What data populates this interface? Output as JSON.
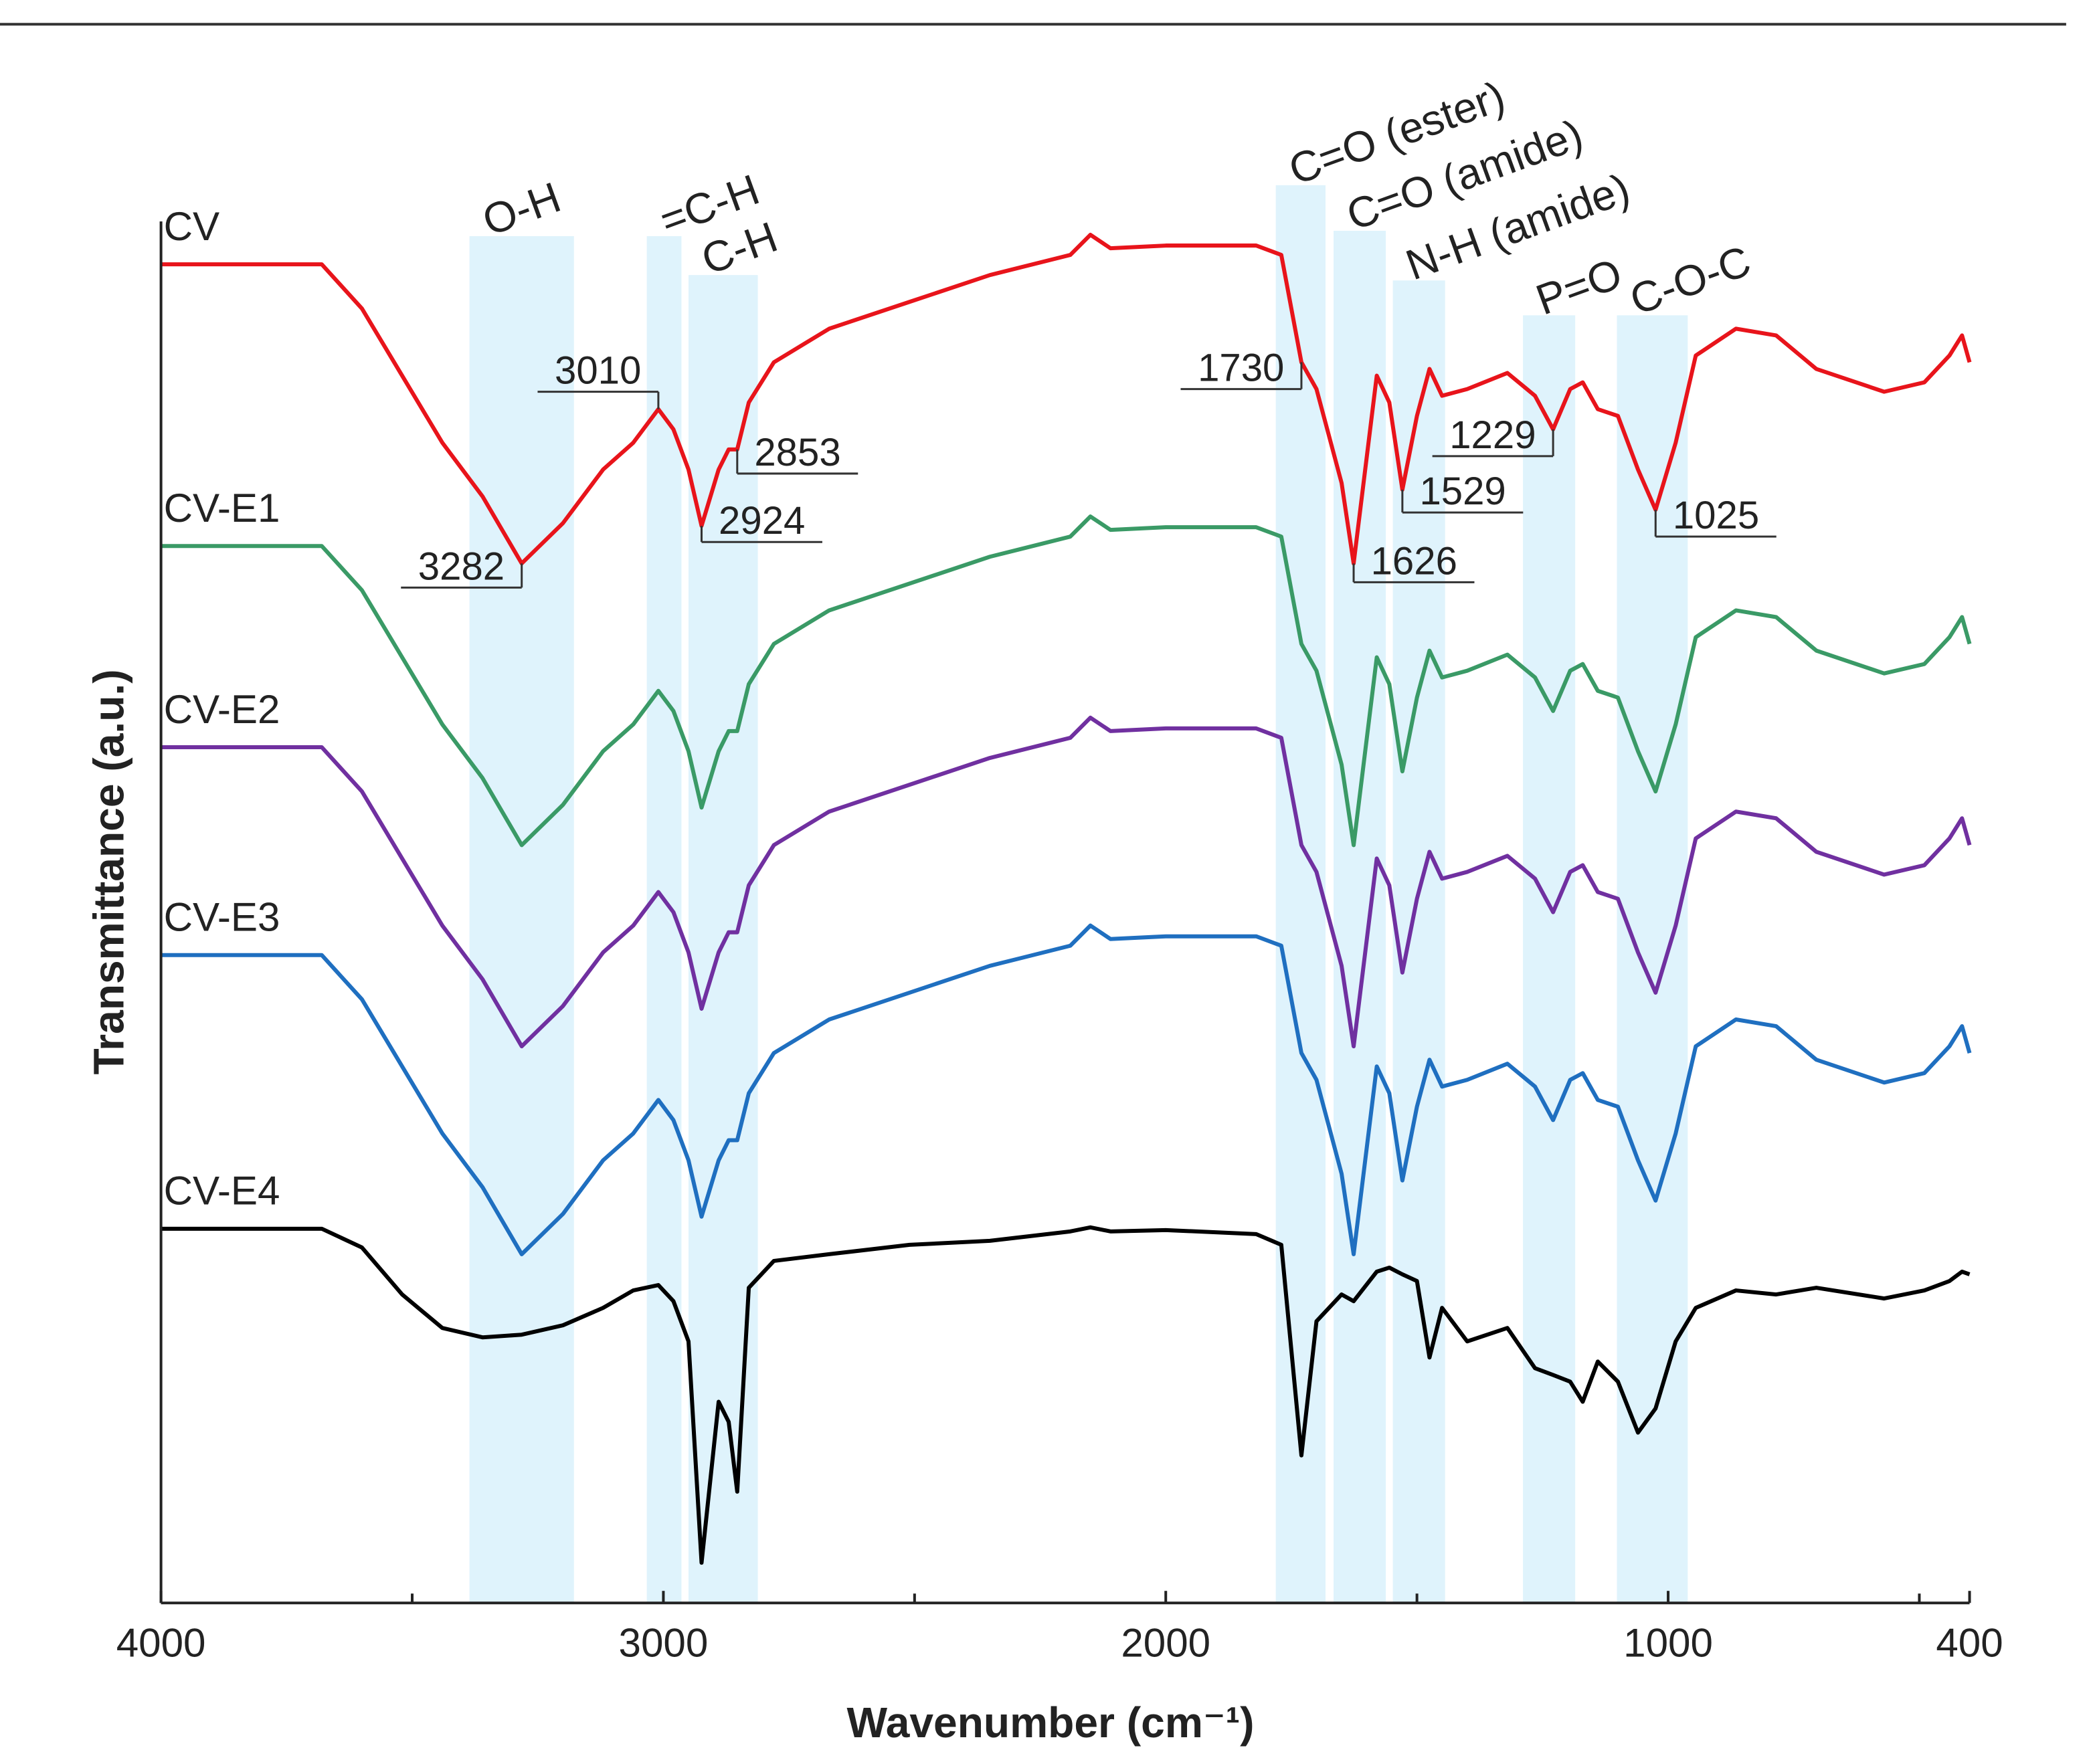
{
  "chart_data": {
    "type": "line",
    "xlabel": "Wavenumber (cm⁻¹)",
    "ylabel": "Transmittance (a.u.)",
    "xlim": [
      4000,
      400
    ],
    "ylim": [
      0,
      103
    ],
    "xticks": [
      4000,
      3000,
      2000,
      1000,
      400
    ],
    "xminor_ticks": [
      3500,
      2500,
      1500,
      500
    ],
    "x": [
      4000,
      3680,
      3600,
      3520,
      3440,
      3360,
      3282,
      3200,
      3120,
      3060,
      3010,
      2980,
      2950,
      2924,
      2890,
      2870,
      2853,
      2830,
      2780,
      2670,
      2510,
      2350,
      2190,
      2150,
      2110,
      2000,
      1820,
      1770,
      1730,
      1700,
      1650,
      1626,
      1580,
      1555,
      1529,
      1500,
      1475,
      1450,
      1400,
      1320,
      1265,
      1229,
      1195,
      1170,
      1140,
      1100,
      1060,
      1025,
      985,
      945,
      865,
      785,
      705,
      570,
      490,
      440,
      415,
      400
    ],
    "series": [
      {
        "name": "CV",
        "color": "#e8141b",
        "values": [
          99.8,
          99.8,
          96.5,
          91.5,
          86.5,
          82.5,
          77.5,
          80.5,
          84.5,
          86.5,
          89,
          87.5,
          84.5,
          80.3,
          84.5,
          86,
          86,
          89.5,
          92.5,
          95,
          97,
          99,
          100.5,
          102,
          101,
          101.2,
          101.2,
          100.5,
          92.5,
          90.5,
          83.5,
          77.5,
          91.5,
          89.5,
          83,
          88.5,
          92,
          90,
          90.5,
          91.7,
          90,
          87.5,
          90.5,
          91,
          89,
          88.5,
          84.5,
          81.5,
          86.5,
          93,
          95,
          94.5,
          92,
          90.3,
          91,
          93,
          94.5,
          92.5
        ]
      },
      {
        "name": "CV-E1",
        "color": "#3a9a66",
        "values": [
          78.8,
          78.8,
          75.5,
          70.5,
          65.5,
          61.5,
          56.5,
          59.5,
          63.5,
          65.5,
          68,
          66.5,
          63.5,
          59.3,
          63.5,
          65,
          65,
          68.5,
          71.5,
          74,
          76,
          78,
          79.5,
          81,
          80,
          80.2,
          80.2,
          79.5,
          71.5,
          69.5,
          62.5,
          56.5,
          70.5,
          68.5,
          62,
          67.5,
          71,
          69,
          69.5,
          70.7,
          69,
          66.5,
          69.5,
          70,
          68,
          67.5,
          63.5,
          60.5,
          65.5,
          72,
          74,
          73.5,
          71,
          69.3,
          70,
          72,
          73.5,
          71.5
        ]
      },
      {
        "name": "CV-E2",
        "color": "#7030a0",
        "values": [
          63.8,
          63.8,
          60.5,
          55.5,
          50.5,
          46.5,
          41.5,
          44.5,
          48.5,
          50.5,
          53,
          51.5,
          48.5,
          44.3,
          48.5,
          50,
          50,
          53.5,
          56.5,
          59,
          61,
          63,
          64.5,
          66,
          65,
          65.2,
          65.2,
          64.5,
          56.5,
          54.5,
          47.5,
          41.5,
          55.5,
          53.5,
          47,
          52.5,
          56,
          54,
          54.5,
          55.7,
          54,
          51.5,
          54.5,
          55,
          53,
          52.5,
          48.5,
          45.5,
          50.5,
          57,
          59,
          58.5,
          56,
          54.3,
          55,
          57,
          58.5,
          56.5
        ]
      },
      {
        "name": "CV-E3",
        "color": "#1f6fc0",
        "values": [
          48.3,
          48.3,
          45,
          40,
          35,
          31,
          26,
          29,
          33,
          35,
          37.5,
          36,
          33,
          28.8,
          33,
          34.5,
          34.5,
          38,
          41,
          43.5,
          45.5,
          47.5,
          49,
          50.5,
          49.5,
          49.7,
          49.7,
          49,
          41,
          39,
          32,
          26,
          40,
          38,
          31.5,
          37,
          40.5,
          38.5,
          39,
          40.2,
          38.5,
          36,
          39,
          39.5,
          37.5,
          37,
          33,
          30,
          35,
          41.5,
          43.5,
          43,
          40.5,
          38.8,
          39.5,
          41.5,
          43,
          41
        ]
      },
      {
        "name": "CV-E4",
        "color": "#000000",
        "values": [
          27.9,
          27.9,
          26.5,
          23,
          20.5,
          19.8,
          20,
          20.7,
          22,
          23.3,
          23.7,
          22.5,
          19.5,
          3,
          15,
          13.5,
          8.3,
          23.5,
          25.5,
          26,
          26.7,
          27,
          27.7,
          28,
          27.7,
          27.8,
          27.5,
          26.7,
          11,
          21,
          23,
          22.5,
          24.7,
          25,
          24.5,
          24,
          18.3,
          22,
          19.5,
          20.5,
          17.5,
          17,
          16.5,
          15,
          18,
          16.5,
          12.7,
          14.5,
          19.5,
          22,
          23.3,
          23,
          23.5,
          22.7,
          23.3,
          24,
          24.7,
          24.5
        ]
      }
    ],
    "bands": [
      {
        "label": "O-H",
        "range": [
          3386,
          3178
        ]
      },
      {
        "label": "=C-H",
        "range": [
          3033,
          2964
        ]
      },
      {
        "label": "C-H",
        "range": [
          2950,
          2812
        ]
      },
      {
        "label": "C=O (ester)",
        "range": [
          1781,
          1682
        ]
      },
      {
        "label": "C=O (amide)",
        "range": [
          1666,
          1562
        ]
      },
      {
        "label": "N-H (amide)",
        "range": [
          1548,
          1444
        ]
      },
      {
        "label": "P=O",
        "range": [
          1289,
          1185
        ]
      },
      {
        "label": "C-O-C",
        "range": [
          1102,
          961
        ]
      }
    ],
    "band_color": "#dff3fc",
    "peaks": [
      3282,
      3010,
      2924,
      2853,
      1730,
      1626,
      1529,
      1229,
      1025
    ]
  }
}
